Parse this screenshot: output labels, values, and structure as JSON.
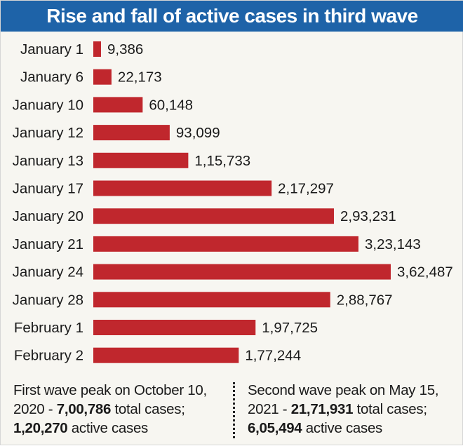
{
  "title": "Rise and fall of active cases in third wave",
  "colors": {
    "title_bg": "#1e63a8",
    "title_text": "#ffffff",
    "bar": "#c0272d",
    "background": "#f7f6f1",
    "text": "#1a1a1a"
  },
  "chart_data": {
    "type": "bar",
    "orientation": "horizontal",
    "title": "Rise and fall of active cases in third wave",
    "xlabel": "",
    "ylabel": "",
    "grid": false,
    "xlim": [
      0,
      362487
    ],
    "categories": [
      "January 1",
      "January 6",
      "January 10",
      "January 12",
      "January 13",
      "January 17",
      "January 20",
      "January 21",
      "January 24",
      "January 28",
      "February 1",
      "February 2"
    ],
    "values": [
      9386,
      22173,
      60148,
      93099,
      115733,
      217297,
      293231,
      323143,
      362487,
      288767,
      197725,
      177244
    ],
    "value_labels": [
      "9,386",
      "22,173",
      "60,148",
      "93,099",
      "1,15,733",
      "2,17,297",
      "2,93,231",
      "3,23,143",
      "3,62,487",
      "2,88,767",
      "1,97,725",
      "1,77,244"
    ]
  },
  "footer": {
    "left": {
      "line1": "First wave peak on October 10,",
      "line2_prefix": "2020 - ",
      "line2_bold": "7,00,786",
      "line2_suffix": " total cases;",
      "line3_bold": "1,20,270",
      "line3_suffix": " active cases"
    },
    "right": {
      "line1": "Second wave peak on May 15,",
      "line2_prefix": "2021 - ",
      "line2_bold": "21,71,931",
      "line2_suffix": " total cases;",
      "line3_bold": "6,05,494",
      "line3_suffix": " active cases"
    }
  }
}
